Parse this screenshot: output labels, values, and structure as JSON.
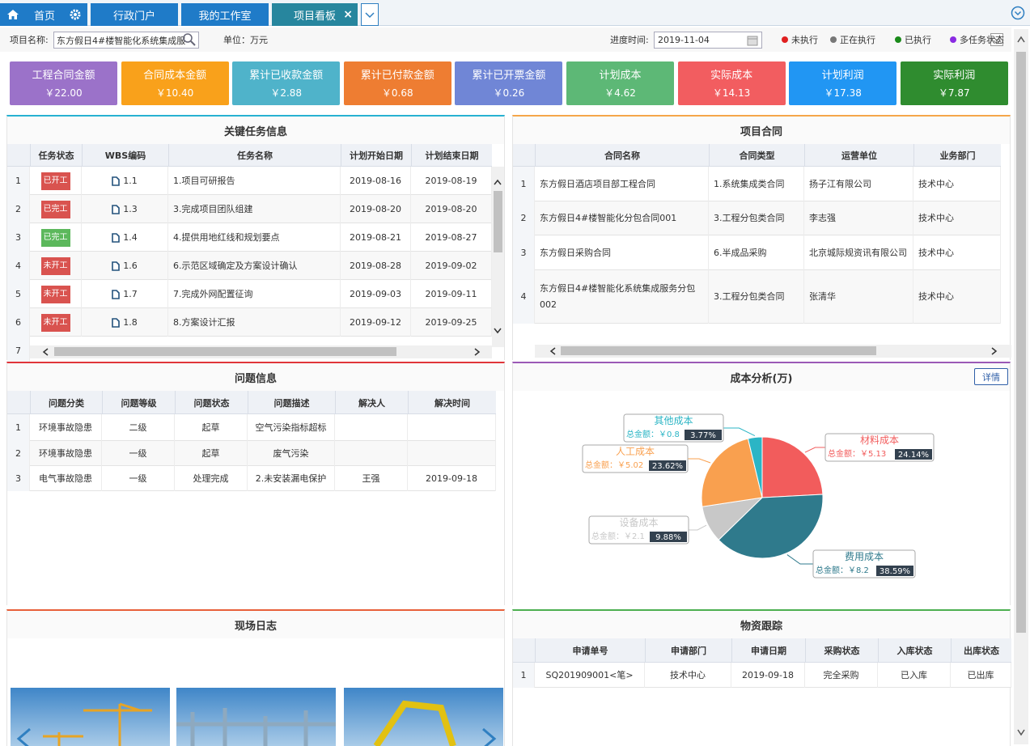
{
  "tabs": [
    "首页",
    "行政门户",
    "我的工作室",
    "项目看板"
  ],
  "filter": {
    "project_label": "项目名称:",
    "project_value": "东方假日4#楼智能化系统集成服",
    "unit": "单位：万元",
    "date_label": "进度时间:",
    "date_value": "2019-11-04",
    "legend": [
      {
        "name": "未执行",
        "color": "#e02020"
      },
      {
        "name": "正在执行",
        "color": "#777777"
      },
      {
        "name": "已执行",
        "color": "#1a8a1a"
      },
      {
        "name": "多任务状态",
        "color": "#8a2be2"
      }
    ]
  },
  "kpis": [
    {
      "label": "工程合同金额",
      "value": "￥22.00",
      "color": "#9b72c9"
    },
    {
      "label": "合同成本金额",
      "value": "￥10.40",
      "color": "#f9a11b"
    },
    {
      "label": "累计已收款金额",
      "value": "￥2.88",
      "color": "#4fb3ca"
    },
    {
      "label": "累计已付款金额",
      "value": "￥0.68",
      "color": "#ee7d32"
    },
    {
      "label": "累计已开票金额",
      "value": "￥0.26",
      "color": "#7086d6"
    },
    {
      "label": "计划成本",
      "value": "￥4.62",
      "color": "#5db876"
    },
    {
      "label": "实际成本",
      "value": "￥14.13",
      "color": "#f25d60"
    },
    {
      "label": "计划利润",
      "value": "￥17.38",
      "color": "#2196f3"
    },
    {
      "label": "实际利润",
      "value": "￥7.87",
      "color": "#2f8c2f"
    }
  ],
  "tasks": {
    "title": "关键任务信息",
    "columns": [
      "任务状态",
      "WBS编码",
      "任务名称",
      "计划开始日期",
      "计划结束日期"
    ],
    "rows": [
      [
        "1",
        "已开工",
        "1.1",
        "1.项目可研报告",
        "2019-08-16",
        "2019-08-19"
      ],
      [
        "2",
        "已完工",
        "1.3",
        "3.完成项目团队组建",
        "2019-08-20",
        "2019-08-20"
      ],
      [
        "3",
        "已完工",
        "1.4",
        "4.提供用地红线和规划要点",
        "2019-08-21",
        "2019-08-27"
      ],
      [
        "4",
        "未开工",
        "1.6",
        "6.示范区域确定及方案设计确认",
        "2019-08-28",
        "2019-09-02"
      ],
      [
        "5",
        "未开工",
        "1.7",
        "7.完成外网配置征询",
        "2019-09-03",
        "2019-09-11"
      ],
      [
        "6",
        "未开工",
        "1.8",
        "8.方案设计汇报",
        "2019-09-12",
        "2019-09-25"
      ],
      [
        "7"
      ]
    ],
    "status_colors": [
      "#d9534f",
      "#d9534f",
      "#5cb85c",
      "#d9534f",
      "#d9534f",
      "#d9534f"
    ]
  },
  "contracts": {
    "title": "项目合同",
    "columns": [
      "合同名称",
      "合同类型",
      "运营单位",
      "业务部门"
    ],
    "rows": [
      [
        "1",
        "东方假日酒店项目部工程合同",
        "1.系统集成类合同",
        "扬子江有限公司",
        "技术中心"
      ],
      [
        "2",
        "东方假日4#楼智能化分包合同001",
        "3.工程分包类合同",
        "李志强",
        "技术中心"
      ],
      [
        "3",
        "东方假日采购合同",
        "6.半成品采购",
        "北京城际规资讯有限公司",
        "技术中心"
      ],
      [
        "4",
        "东方假日4#楼智能化系统集成服务分包002",
        "3.工程分包类合同",
        "张清华",
        "技术中心"
      ]
    ]
  },
  "issues": {
    "title": "问题信息",
    "columns": [
      "问题分类",
      "问题等级",
      "问题状态",
      "问题描述",
      "解决人",
      "解决时间"
    ],
    "rows": [
      [
        "1",
        "环境事故隐患",
        "二级",
        "起草",
        "空气污染指标超标",
        "",
        ""
      ],
      [
        "2",
        "环境事故隐患",
        "一级",
        "起草",
        "废气污染",
        "",
        ""
      ],
      [
        "3",
        "电气事故隐患",
        "一级",
        "处理完成",
        "2.未安装漏电保护",
        "王强",
        "2019-09-18"
      ]
    ]
  },
  "site_log": {
    "title": "现场日志"
  },
  "materials": {
    "title": "物资跟踪",
    "columns": [
      "申请单号",
      "申请部门",
      "申请日期",
      "采购状态",
      "入库状态",
      "出库状态"
    ],
    "rows": [
      [
        "1",
        "SQ201909001<笔>",
        "技术中心",
        "2019-09-18",
        "完全采购",
        "已入库",
        "已出库"
      ]
    ]
  },
  "chart_data": {
    "type": "pie",
    "title": "成本分析(万)",
    "button": "详情",
    "categories": [
      "材料成本",
      "费用成本",
      "设备成本",
      "人工成本",
      "其他成本"
    ],
    "values": [
      5.13,
      8.2,
      2.1,
      5.02,
      0.8
    ],
    "value_labels": [
      "总金额：￥5.13",
      "总金额：￥8.2",
      "总金额：￥2.1",
      "总金额：￥5.02",
      "总金额：￥0.8"
    ],
    "percent_labels": [
      "24.14%",
      "38.59%",
      "9.88%",
      "23.62%",
      "3.77%"
    ],
    "colors": [
      "#f25c5c",
      "#2f7a8c",
      "#c8c8c8",
      "#f9a04f",
      "#2bb5c5"
    ]
  }
}
